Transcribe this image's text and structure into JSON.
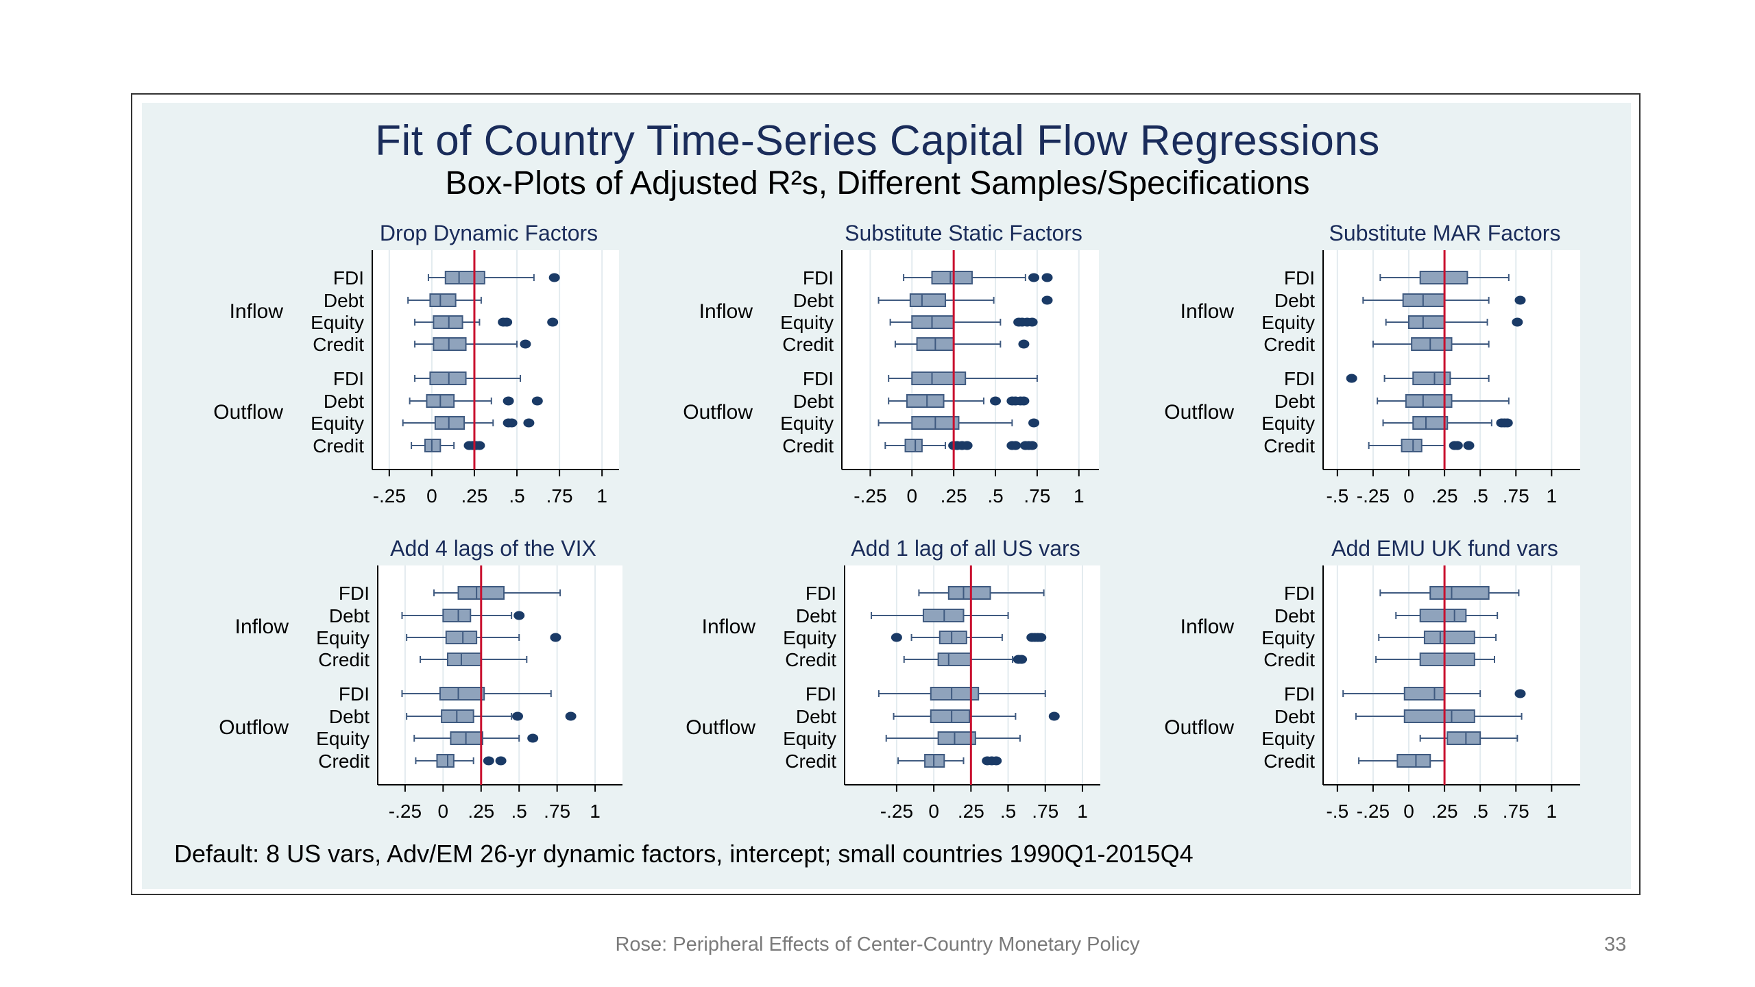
{
  "slide": {
    "title": "Fit of Country Time-Series Capital Flow Regressions",
    "subtitle": "Box-Plots of Adjusted R²s, Different Samples/Specifications",
    "note": "Default: 8 US vars, Adv/EM 26-yr dynamic factors, intercept; small countries 1990Q1-2015Q4",
    "footer": "Rose: Peripheral Effects of Center-Country Monetary Policy",
    "page_number": "33"
  },
  "colors": {
    "box_fill": "#8fa3bc",
    "box_edge": "#3f5a80",
    "outlier": "#1a3a66",
    "reference_line": "#c8102e",
    "plot_bg": "#ffffff",
    "graph_bg": "#eaf2f3",
    "title": "#1a2c5a"
  },
  "chart_data": [
    {
      "type": "box",
      "title": "Drop Dynamic Factors",
      "xlim": [
        -0.35,
        1.1
      ],
      "xticks": [
        -0.25,
        0,
        0.25,
        0.5,
        0.75,
        1
      ],
      "xtick_labels": [
        "-.25",
        "0",
        ".25",
        ".5",
        ".75",
        "1"
      ],
      "reference_line": 0.25,
      "groups": [
        "Inflow",
        "Outflow"
      ],
      "categories": [
        "FDI",
        "Debt",
        "Equity",
        "Credit"
      ],
      "boxes": [
        {
          "group": "Inflow",
          "label": "FDI",
          "whisker_low": -0.02,
          "q1": 0.08,
          "median": 0.16,
          "q3": 0.31,
          "whisker_high": 0.6,
          "outliers": [
            0.72
          ]
        },
        {
          "group": "Inflow",
          "label": "Debt",
          "whisker_low": -0.14,
          "q1": -0.01,
          "median": 0.05,
          "q3": 0.14,
          "whisker_high": 0.29,
          "outliers": []
        },
        {
          "group": "Inflow",
          "label": "Equity",
          "whisker_low": -0.1,
          "q1": 0.01,
          "median": 0.1,
          "q3": 0.18,
          "whisker_high": 0.28,
          "outliers": [
            0.42,
            0.44,
            0.71
          ]
        },
        {
          "group": "Inflow",
          "label": "Credit",
          "whisker_low": -0.1,
          "q1": 0.01,
          "median": 0.1,
          "q3": 0.2,
          "whisker_high": 0.5,
          "outliers": [
            0.55
          ]
        },
        {
          "group": "Outflow",
          "label": "FDI",
          "whisker_low": -0.1,
          "q1": -0.01,
          "median": 0.1,
          "q3": 0.2,
          "whisker_high": 0.52,
          "outliers": []
        },
        {
          "group": "Outflow",
          "label": "Debt",
          "whisker_low": -0.13,
          "q1": -0.03,
          "median": 0.05,
          "q3": 0.13,
          "whisker_high": 0.35,
          "outliers": [
            0.45,
            0.62
          ]
        },
        {
          "group": "Outflow",
          "label": "Equity",
          "whisker_low": -0.17,
          "q1": 0.02,
          "median": 0.1,
          "q3": 0.19,
          "whisker_high": 0.36,
          "outliers": [
            0.45,
            0.47,
            0.57
          ]
        },
        {
          "group": "Outflow",
          "label": "Credit",
          "whisker_low": -0.12,
          "q1": -0.04,
          "median": 0.0,
          "q3": 0.05,
          "whisker_high": 0.13,
          "outliers": [
            0.22,
            0.24,
            0.26,
            0.28
          ]
        }
      ]
    },
    {
      "type": "box",
      "title": "Substitute Static Factors",
      "xlim": [
        -0.42,
        1.12
      ],
      "xticks": [
        -0.25,
        0,
        0.25,
        0.5,
        0.75,
        1
      ],
      "xtick_labels": [
        "-.25",
        "0",
        ".25",
        ".5",
        ".75",
        "1"
      ],
      "reference_line": 0.25,
      "groups": [
        "Inflow",
        "Outflow"
      ],
      "categories": [
        "FDI",
        "Debt",
        "Equity",
        "Credit"
      ],
      "boxes": [
        {
          "group": "Inflow",
          "label": "FDI",
          "whisker_low": -0.05,
          "q1": 0.12,
          "median": 0.23,
          "q3": 0.36,
          "whisker_high": 0.68,
          "outliers": [
            0.73,
            0.81
          ]
        },
        {
          "group": "Inflow",
          "label": "Debt",
          "whisker_low": -0.2,
          "q1": -0.01,
          "median": 0.06,
          "q3": 0.2,
          "whisker_high": 0.49,
          "outliers": [
            0.81
          ]
        },
        {
          "group": "Inflow",
          "label": "Equity",
          "whisker_low": -0.13,
          "q1": 0.0,
          "median": 0.12,
          "q3": 0.25,
          "whisker_high": 0.53,
          "outliers": [
            0.64,
            0.66,
            0.69,
            0.72
          ]
        },
        {
          "group": "Inflow",
          "label": "Credit",
          "whisker_low": -0.1,
          "q1": 0.03,
          "median": 0.14,
          "q3": 0.25,
          "whisker_high": 0.53,
          "outliers": [
            0.67
          ]
        },
        {
          "group": "Outflow",
          "label": "FDI",
          "whisker_low": -0.14,
          "q1": 0.0,
          "median": 0.12,
          "q3": 0.32,
          "whisker_high": 0.75,
          "outliers": []
        },
        {
          "group": "Outflow",
          "label": "Debt",
          "whisker_low": -0.14,
          "q1": -0.03,
          "median": 0.09,
          "q3": 0.19,
          "whisker_high": 0.43,
          "outliers": [
            0.5,
            0.6,
            0.62,
            0.65,
            0.67
          ]
        },
        {
          "group": "Outflow",
          "label": "Equity",
          "whisker_low": -0.2,
          "q1": 0.0,
          "median": 0.14,
          "q3": 0.28,
          "whisker_high": 0.6,
          "outliers": [
            0.73
          ]
        },
        {
          "group": "Outflow",
          "label": "Credit",
          "whisker_low": -0.16,
          "q1": -0.04,
          "median": 0.02,
          "q3": 0.06,
          "whisker_high": 0.2,
          "outliers": [
            0.25,
            0.27,
            0.3,
            0.33,
            0.6,
            0.62,
            0.68,
            0.7,
            0.72
          ]
        }
      ]
    },
    {
      "type": "box",
      "title": "Substitute MAR Factors",
      "xlim": [
        -0.6,
        1.2
      ],
      "xticks": [
        -0.5,
        -0.25,
        0,
        0.25,
        0.5,
        0.75,
        1
      ],
      "xtick_labels": [
        "-.5",
        "-.25",
        "0",
        ".25",
        ".5",
        ".75",
        "1"
      ],
      "reference_line": 0.25,
      "groups": [
        "Inflow",
        "Outflow"
      ],
      "categories": [
        "FDI",
        "Debt",
        "Equity",
        "Credit"
      ],
      "boxes": [
        {
          "group": "Inflow",
          "label": "FDI",
          "whisker_low": -0.2,
          "q1": 0.08,
          "median": 0.25,
          "q3": 0.41,
          "whisker_high": 0.7,
          "outliers": []
        },
        {
          "group": "Inflow",
          "label": "Debt",
          "whisker_low": -0.32,
          "q1": -0.04,
          "median": 0.1,
          "q3": 0.25,
          "whisker_high": 0.56,
          "outliers": [
            0.78
          ]
        },
        {
          "group": "Inflow",
          "label": "Equity",
          "whisker_low": -0.16,
          "q1": 0.0,
          "median": 0.1,
          "q3": 0.25,
          "whisker_high": 0.55,
          "outliers": [
            0.76
          ]
        },
        {
          "group": "Inflow",
          "label": "Credit",
          "whisker_low": -0.25,
          "q1": 0.02,
          "median": 0.15,
          "q3": 0.3,
          "whisker_high": 0.56,
          "outliers": []
        },
        {
          "group": "Outflow",
          "label": "FDI",
          "whisker_low": -0.17,
          "q1": 0.03,
          "median": 0.18,
          "q3": 0.29,
          "whisker_high": 0.56,
          "outliers": [
            -0.4
          ]
        },
        {
          "group": "Outflow",
          "label": "Debt",
          "whisker_low": -0.22,
          "q1": -0.02,
          "median": 0.1,
          "q3": 0.3,
          "whisker_high": 0.7,
          "outliers": []
        },
        {
          "group": "Outflow",
          "label": "Equity",
          "whisker_low": -0.18,
          "q1": 0.03,
          "median": 0.12,
          "q3": 0.27,
          "whisker_high": 0.58,
          "outliers": [
            0.65,
            0.67,
            0.69
          ]
        },
        {
          "group": "Outflow",
          "label": "Credit",
          "whisker_low": -0.28,
          "q1": -0.05,
          "median": 0.03,
          "q3": 0.09,
          "whisker_high": 0.25,
          "outliers": [
            0.32,
            0.34,
            0.42
          ]
        }
      ]
    },
    {
      "type": "box",
      "title": "Add 4 lags of the VIX",
      "xlim": [
        -0.43,
        1.18
      ],
      "xticks": [
        -0.25,
        0,
        0.25,
        0.5,
        0.75,
        1
      ],
      "xtick_labels": [
        "-.25",
        "0",
        ".25",
        ".5",
        ".75",
        "1"
      ],
      "reference_line": 0.25,
      "groups": [
        "Inflow",
        "Outflow"
      ],
      "categories": [
        "FDI",
        "Debt",
        "Equity",
        "Credit"
      ],
      "boxes": [
        {
          "group": "Inflow",
          "label": "FDI",
          "whisker_low": -0.06,
          "q1": 0.1,
          "median": 0.22,
          "q3": 0.4,
          "whisker_high": 0.77,
          "outliers": []
        },
        {
          "group": "Inflow",
          "label": "Debt",
          "whisker_low": -0.27,
          "q1": 0.0,
          "median": 0.1,
          "q3": 0.18,
          "whisker_high": 0.45,
          "outliers": [
            0.5
          ]
        },
        {
          "group": "Inflow",
          "label": "Equity",
          "whisker_low": -0.24,
          "q1": 0.02,
          "median": 0.13,
          "q3": 0.22,
          "whisker_high": 0.5,
          "outliers": [
            0.74
          ]
        },
        {
          "group": "Inflow",
          "label": "Credit",
          "whisker_low": -0.15,
          "q1": 0.03,
          "median": 0.12,
          "q3": 0.25,
          "whisker_high": 0.55,
          "outliers": []
        },
        {
          "group": "Outflow",
          "label": "FDI",
          "whisker_low": -0.27,
          "q1": -0.02,
          "median": 0.1,
          "q3": 0.27,
          "whisker_high": 0.71,
          "outliers": []
        },
        {
          "group": "Outflow",
          "label": "Debt",
          "whisker_low": -0.24,
          "q1": -0.01,
          "median": 0.09,
          "q3": 0.2,
          "whisker_high": 0.45,
          "outliers": [
            0.49,
            0.84
          ]
        },
        {
          "group": "Outflow",
          "label": "Equity",
          "whisker_low": -0.19,
          "q1": 0.05,
          "median": 0.15,
          "q3": 0.26,
          "whisker_high": 0.5,
          "outliers": [
            0.59
          ]
        },
        {
          "group": "Outflow",
          "label": "Credit",
          "whisker_low": -0.18,
          "q1": -0.04,
          "median": 0.03,
          "q3": 0.07,
          "whisker_high": 0.2,
          "outliers": [
            0.3,
            0.38
          ]
        }
      ]
    },
    {
      "type": "box",
      "title": "Add 1 lag of all US vars",
      "xlim": [
        -0.6,
        1.12
      ],
      "xticks": [
        -0.25,
        0,
        0.25,
        0.5,
        0.75,
        1
      ],
      "xtick_labels": [
        "-.25",
        "0",
        ".25",
        ".5",
        ".75",
        "1"
      ],
      "reference_line": 0.25,
      "groups": [
        "Inflow",
        "Outflow"
      ],
      "categories": [
        "FDI",
        "Debt",
        "Equity",
        "Credit"
      ],
      "boxes": [
        {
          "group": "Inflow",
          "label": "FDI",
          "whisker_low": -0.1,
          "q1": 0.1,
          "median": 0.2,
          "q3": 0.38,
          "whisker_high": 0.74,
          "outliers": []
        },
        {
          "group": "Inflow",
          "label": "Debt",
          "whisker_low": -0.42,
          "q1": -0.07,
          "median": 0.07,
          "q3": 0.2,
          "whisker_high": 0.5,
          "outliers": []
        },
        {
          "group": "Inflow",
          "label": "Equity",
          "whisker_low": -0.15,
          "q1": 0.04,
          "median": 0.12,
          "q3": 0.22,
          "whisker_high": 0.46,
          "outliers": [
            -0.25,
            0.66,
            0.68,
            0.7,
            0.72
          ]
        },
        {
          "group": "Inflow",
          "label": "Credit",
          "whisker_low": -0.2,
          "q1": 0.03,
          "median": 0.1,
          "q3": 0.25,
          "whisker_high": 0.53,
          "outliers": [
            0.57,
            0.59
          ]
        },
        {
          "group": "Outflow",
          "label": "FDI",
          "whisker_low": -0.37,
          "q1": -0.02,
          "median": 0.12,
          "q3": 0.3,
          "whisker_high": 0.75,
          "outliers": []
        },
        {
          "group": "Outflow",
          "label": "Debt",
          "whisker_low": -0.27,
          "q1": -0.02,
          "median": 0.12,
          "q3": 0.24,
          "whisker_high": 0.55,
          "outliers": [
            0.81
          ]
        },
        {
          "group": "Outflow",
          "label": "Equity",
          "whisker_low": -0.32,
          "q1": 0.03,
          "median": 0.14,
          "q3": 0.28,
          "whisker_high": 0.58,
          "outliers": []
        },
        {
          "group": "Outflow",
          "label": "Credit",
          "whisker_low": -0.24,
          "q1": -0.06,
          "median": 0.0,
          "q3": 0.07,
          "whisker_high": 0.2,
          "outliers": [
            0.36,
            0.39,
            0.42
          ]
        }
      ]
    },
    {
      "type": "box",
      "title": "Add EMU UK fund vars",
      "xlim": [
        -0.6,
        1.2
      ],
      "xticks": [
        -0.5,
        -0.25,
        0,
        0.25,
        0.5,
        0.75,
        1
      ],
      "xtick_labels": [
        "-.5",
        "-.25",
        "0",
        ".25",
        ".5",
        ".75",
        "1"
      ],
      "reference_line": 0.25,
      "groups": [
        "Inflow",
        "Outflow"
      ],
      "categories": [
        "FDI",
        "Debt",
        "Equity",
        "Credit"
      ],
      "boxes": [
        {
          "group": "Inflow",
          "label": "FDI",
          "whisker_low": -0.2,
          "q1": 0.15,
          "median": 0.3,
          "q3": 0.56,
          "whisker_high": 0.77,
          "outliers": []
        },
        {
          "group": "Inflow",
          "label": "Debt",
          "whisker_low": -0.09,
          "q1": 0.08,
          "median": 0.32,
          "q3": 0.4,
          "whisker_high": 0.62,
          "outliers": []
        },
        {
          "group": "Inflow",
          "label": "Equity",
          "whisker_low": -0.21,
          "q1": 0.11,
          "median": 0.22,
          "q3": 0.46,
          "whisker_high": 0.61,
          "outliers": []
        },
        {
          "group": "Inflow",
          "label": "Credit",
          "whisker_low": -0.23,
          "q1": 0.08,
          "median": 0.25,
          "q3": 0.46,
          "whisker_high": 0.6,
          "outliers": []
        },
        {
          "group": "Outflow",
          "label": "FDI",
          "whisker_low": -0.46,
          "q1": -0.03,
          "median": 0.18,
          "q3": 0.25,
          "whisker_high": 0.5,
          "outliers": [
            0.78
          ]
        },
        {
          "group": "Outflow",
          "label": "Debt",
          "whisker_low": -0.37,
          "q1": -0.03,
          "median": 0.3,
          "q3": 0.46,
          "whisker_high": 0.79,
          "outliers": []
        },
        {
          "group": "Outflow",
          "label": "Equity",
          "whisker_low": 0.08,
          "q1": 0.27,
          "median": 0.4,
          "q3": 0.5,
          "whisker_high": 0.76,
          "outliers": []
        },
        {
          "group": "Outflow",
          "label": "Credit",
          "whisker_low": -0.35,
          "q1": -0.08,
          "median": 0.05,
          "q3": 0.15,
          "whisker_high": 0.25,
          "outliers": []
        }
      ]
    }
  ]
}
